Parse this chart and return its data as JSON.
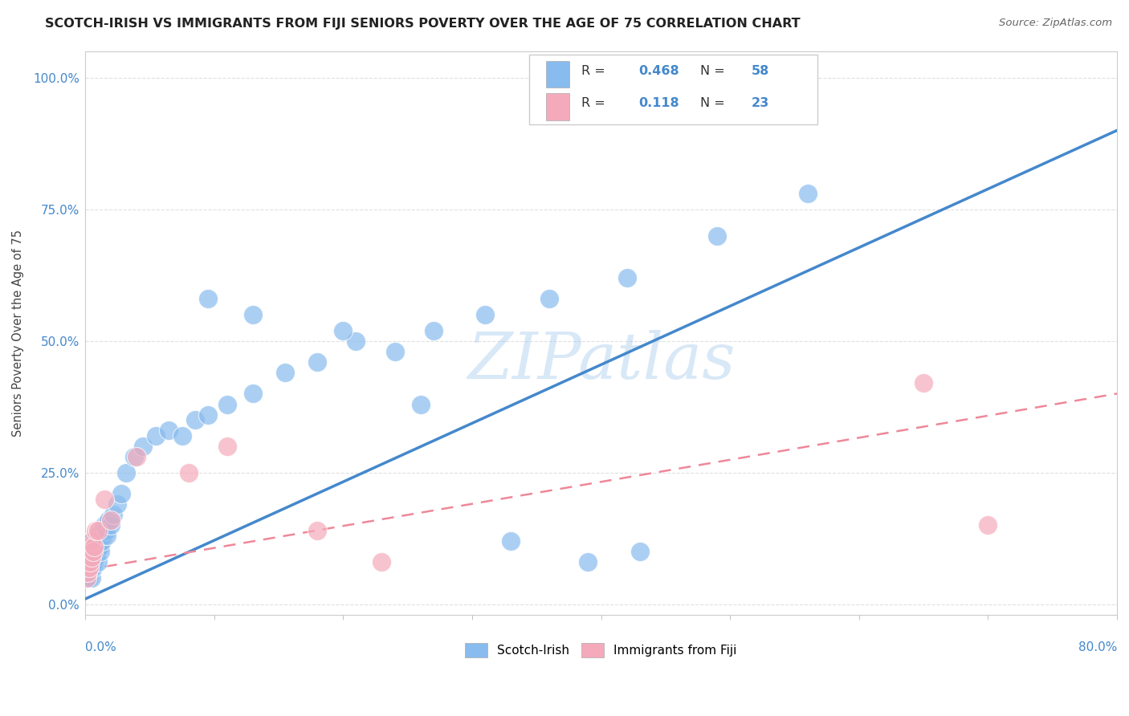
{
  "title": "SCOTCH-IRISH VS IMMIGRANTS FROM FIJI SENIORS POVERTY OVER THE AGE OF 75 CORRELATION CHART",
  "source": "Source: ZipAtlas.com",
  "ylabel": "Seniors Poverty Over the Age of 75",
  "ytick_labels": [
    "0.0%",
    "25.0%",
    "50.0%",
    "75.0%",
    "100.0%"
  ],
  "ytick_values": [
    0.0,
    0.25,
    0.5,
    0.75,
    1.0
  ],
  "xlim": [
    0.0,
    0.8
  ],
  "ylim": [
    -0.02,
    1.05
  ],
  "legend1_label": "Scotch-Irish",
  "legend2_label": "Immigrants from Fiji",
  "R1": 0.468,
  "N1": 58,
  "R2": 0.118,
  "N2": 23,
  "color_blue": "#88BBEE",
  "color_pink": "#F4AABB",
  "color_blue_line": "#4488CC",
  "color_pink_line": "#EE8899",
  "color_blue_text": "#4488CC",
  "color_grid": "#DDDDDD",
  "blue_line_x0": 0.0,
  "blue_line_y0": 0.01,
  "blue_line_x1": 0.8,
  "blue_line_y1": 0.9,
  "pink_line_x0": 0.0,
  "pink_line_y0": 0.065,
  "pink_line_x1": 0.8,
  "pink_line_y1": 0.4,
  "scotch_irish_x": [
    0.001,
    0.001,
    0.002,
    0.002,
    0.002,
    0.003,
    0.003,
    0.003,
    0.003,
    0.004,
    0.004,
    0.004,
    0.005,
    0.005,
    0.005,
    0.005,
    0.006,
    0.006,
    0.006,
    0.007,
    0.007,
    0.008,
    0.008,
    0.009,
    0.01,
    0.01,
    0.011,
    0.012,
    0.013,
    0.014,
    0.015,
    0.016,
    0.017,
    0.018,
    0.02,
    0.022,
    0.025,
    0.028,
    0.032,
    0.038,
    0.045,
    0.055,
    0.065,
    0.075,
    0.085,
    0.095,
    0.11,
    0.13,
    0.155,
    0.18,
    0.21,
    0.24,
    0.27,
    0.31,
    0.36,
    0.42,
    0.49,
    0.56
  ],
  "scotch_irish_y": [
    0.05,
    0.07,
    0.06,
    0.08,
    0.1,
    0.05,
    0.07,
    0.09,
    0.11,
    0.06,
    0.08,
    0.1,
    0.05,
    0.07,
    0.09,
    0.12,
    0.07,
    0.09,
    0.11,
    0.08,
    0.11,
    0.09,
    0.12,
    0.1,
    0.08,
    0.13,
    0.11,
    0.1,
    0.12,
    0.13,
    0.15,
    0.14,
    0.13,
    0.16,
    0.15,
    0.17,
    0.19,
    0.21,
    0.25,
    0.28,
    0.3,
    0.32,
    0.33,
    0.32,
    0.35,
    0.36,
    0.38,
    0.4,
    0.44,
    0.46,
    0.5,
    0.48,
    0.52,
    0.55,
    0.58,
    0.62,
    0.7,
    0.78
  ],
  "scotch_irish_outlier_x": [
    0.095,
    0.13,
    0.2,
    0.26,
    0.33,
    0.39,
    0.43
  ],
  "scotch_irish_outlier_y": [
    0.58,
    0.55,
    0.52,
    0.38,
    0.12,
    0.08,
    0.1
  ],
  "fiji_x": [
    0.001,
    0.001,
    0.002,
    0.002,
    0.003,
    0.003,
    0.004,
    0.004,
    0.005,
    0.005,
    0.006,
    0.007,
    0.008,
    0.01,
    0.015,
    0.02,
    0.04,
    0.08,
    0.11,
    0.18,
    0.23,
    0.65,
    0.7
  ],
  "fiji_y": [
    0.05,
    0.07,
    0.06,
    0.09,
    0.07,
    0.1,
    0.08,
    0.11,
    0.09,
    0.12,
    0.1,
    0.11,
    0.14,
    0.14,
    0.2,
    0.16,
    0.28,
    0.25,
    0.3,
    0.14,
    0.08,
    0.42,
    0.15
  ]
}
